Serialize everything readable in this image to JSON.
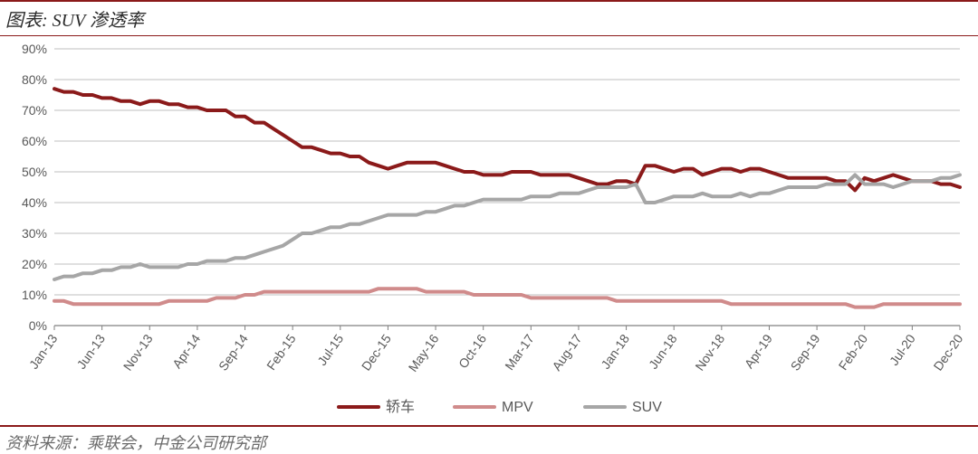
{
  "header": {
    "title": "图表: SUV 渗透率"
  },
  "footer": {
    "source": "资料来源：乘联会，中金公司研究部"
  },
  "chart": {
    "type": "line",
    "background_color": "#ffffff",
    "accent_color": "#8b1a1a",
    "grid_color": "#bfbfbf",
    "axis_line_color": "#808080",
    "text_color": "#595959",
    "title_fontsize": 20,
    "footer_fontsize": 18,
    "axis_fontsize": 14,
    "legend_fontsize": 16,
    "line_width": 4,
    "xlim": [
      0,
      95
    ],
    "ylim": [
      0,
      90
    ],
    "ytick_step": 10,
    "yticks": [
      0,
      10,
      20,
      30,
      40,
      50,
      60,
      70,
      80,
      90
    ],
    "ytick_labels": [
      "0%",
      "10%",
      "20%",
      "30%",
      "40%",
      "50%",
      "60%",
      "70%",
      "80%",
      "90%"
    ],
    "xtick_positions": [
      0,
      5,
      10,
      15,
      20,
      25,
      30,
      35,
      40,
      45,
      50,
      55,
      60,
      65,
      70,
      75,
      80,
      85,
      90,
      95
    ],
    "xtick_labels": [
      "Jan-13",
      "Jun-13",
      "Nov-13",
      "Apr-14",
      "Sep-14",
      "Feb-15",
      "Jul-15",
      "Dec-15",
      "May-16",
      "Oct-16",
      "Mar-17",
      "Aug-17",
      "Jan-18",
      "Jun-18",
      "Nov-18",
      "Apr-19",
      "Sep-19",
      "Feb-20",
      "Jul-20",
      "Dec-20"
    ],
    "xtick_rotation": -55,
    "series": [
      {
        "name": "轿车",
        "color": "#8b1a1a",
        "values": [
          77,
          76,
          76,
          75,
          75,
          74,
          74,
          73,
          73,
          72,
          73,
          73,
          72,
          72,
          71,
          71,
          70,
          70,
          70,
          68,
          68,
          66,
          66,
          64,
          62,
          60,
          58,
          58,
          57,
          56,
          56,
          55,
          55,
          53,
          52,
          51,
          52,
          53,
          53,
          53,
          53,
          52,
          51,
          50,
          50,
          49,
          49,
          49,
          50,
          50,
          50,
          49,
          49,
          49,
          49,
          48,
          47,
          46,
          46,
          47,
          47,
          46,
          52,
          52,
          51,
          50,
          51,
          51,
          49,
          50,
          51,
          51,
          50,
          51,
          51,
          50,
          49,
          48,
          48,
          48,
          48,
          48,
          47,
          47,
          44,
          48,
          47,
          48,
          49,
          48,
          47,
          47,
          47,
          46,
          46,
          45
        ]
      },
      {
        "name": "MPV",
        "color": "#d08b8b",
        "values": [
          8,
          8,
          7,
          7,
          7,
          7,
          7,
          7,
          7,
          7,
          7,
          7,
          8,
          8,
          8,
          8,
          8,
          9,
          9,
          9,
          10,
          10,
          11,
          11,
          11,
          11,
          11,
          11,
          11,
          11,
          11,
          11,
          11,
          11,
          12,
          12,
          12,
          12,
          12,
          11,
          11,
          11,
          11,
          11,
          10,
          10,
          10,
          10,
          10,
          10,
          9,
          9,
          9,
          9,
          9,
          9,
          9,
          9,
          9,
          8,
          8,
          8,
          8,
          8,
          8,
          8,
          8,
          8,
          8,
          8,
          8,
          7,
          7,
          7,
          7,
          7,
          7,
          7,
          7,
          7,
          7,
          7,
          7,
          7,
          6,
          6,
          6,
          7,
          7,
          7,
          7,
          7,
          7,
          7,
          7,
          7
        ]
      },
      {
        "name": "SUV",
        "color": "#a6a6a6",
        "values": [
          15,
          16,
          16,
          17,
          17,
          18,
          18,
          19,
          19,
          20,
          19,
          19,
          19,
          19,
          20,
          20,
          21,
          21,
          21,
          22,
          22,
          23,
          24,
          25,
          26,
          28,
          30,
          30,
          31,
          32,
          32,
          33,
          33,
          34,
          35,
          36,
          36,
          36,
          36,
          37,
          37,
          38,
          39,
          39,
          40,
          41,
          41,
          41,
          41,
          41,
          42,
          42,
          42,
          43,
          43,
          43,
          44,
          45,
          45,
          45,
          45,
          46,
          40,
          40,
          41,
          42,
          42,
          42,
          43,
          42,
          42,
          42,
          43,
          42,
          43,
          43,
          44,
          45,
          45,
          45,
          45,
          46,
          46,
          46,
          49,
          46,
          46,
          46,
          45,
          46,
          47,
          47,
          47,
          48,
          48,
          49
        ]
      }
    ],
    "legend": {
      "position": "bottom-center",
      "items": [
        "轿车",
        "MPV",
        "SUV"
      ]
    }
  }
}
